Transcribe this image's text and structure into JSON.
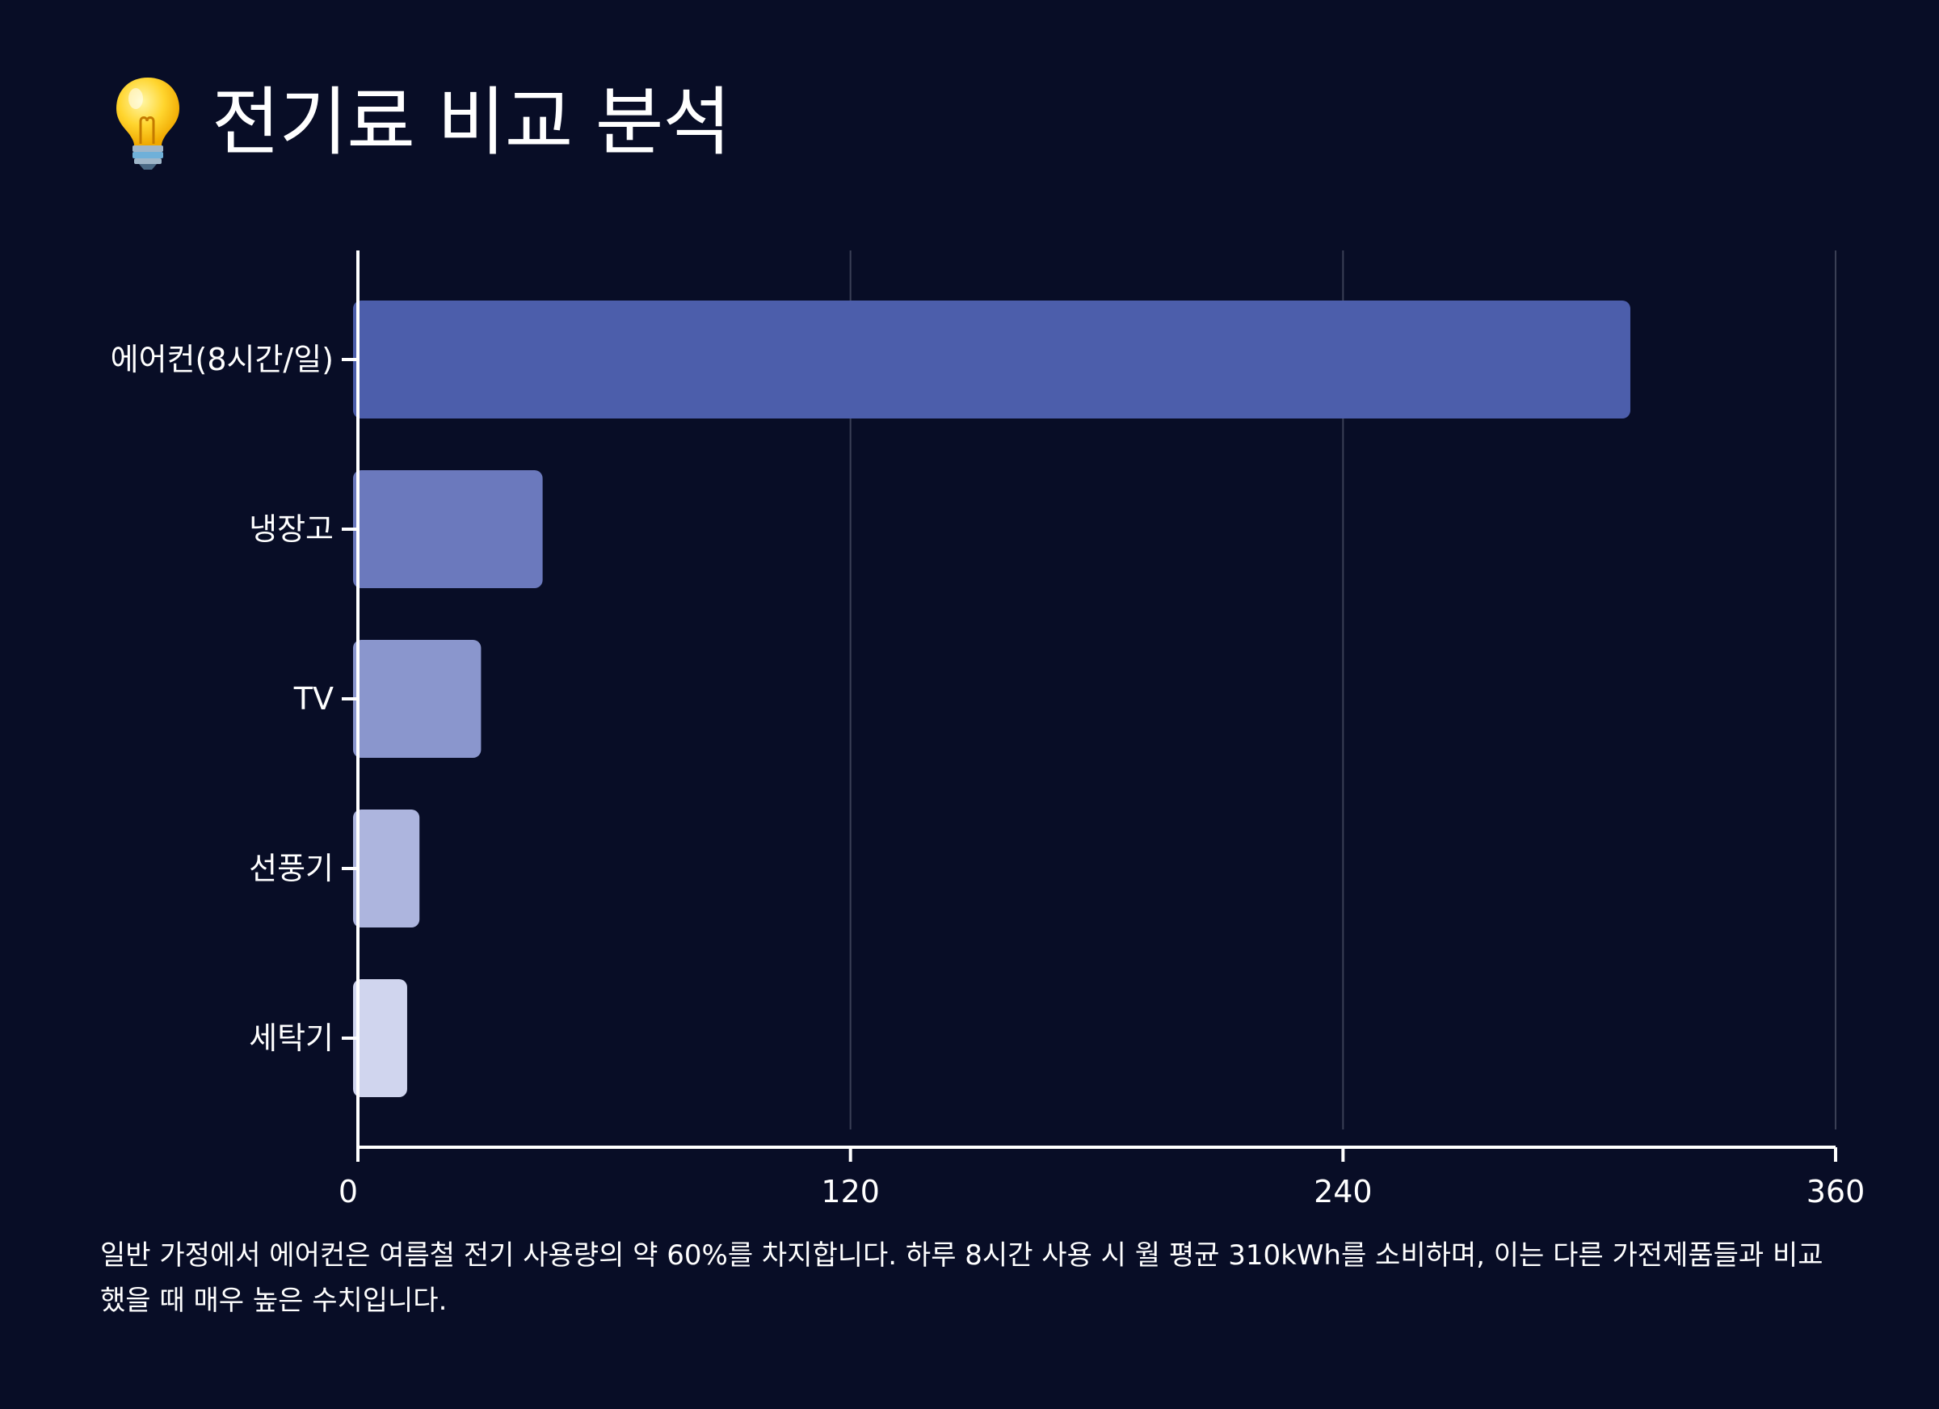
{
  "header": {
    "title": "전기료 비교 분석",
    "icon": "lightbulb-icon"
  },
  "colors": {
    "background": "#080d26",
    "bars": [
      "#4c5eab",
      "#6b79bd",
      "#8a96cd",
      "#adb5de",
      "#d0d5ee"
    ],
    "grid": "#3a3f55",
    "axis": "#ffffff"
  },
  "chart_data": {
    "type": "bar",
    "orientation": "horizontal",
    "categories": [
      "에어컨(8시간/일)",
      "냉장고",
      "TV",
      "선풍기",
      "세탁기"
    ],
    "values": [
      310,
      45,
      30,
      15,
      12
    ],
    "xlim": [
      0,
      360
    ],
    "xticks": [
      0,
      120,
      240,
      360
    ],
    "grid": "vertical"
  },
  "caption": "일반 가정에서 에어컨은 여름철 전기 사용량의 약 60%를 차지합니다. 하루 8시간 사용 시 월 평균 310kWh를 소비하며, 이는 다른 가전제품들과 비교했을 때 매우 높은 수치입니다."
}
